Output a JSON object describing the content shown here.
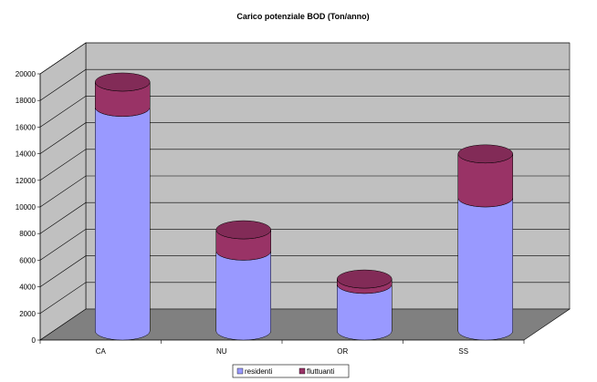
{
  "chart_data": {
    "type": "bar",
    "stacked": true,
    "three_d": true,
    "shape": "cylinder",
    "title": "Carico potenziale BOD (Ton/anno)",
    "categories": [
      "CA",
      "NU",
      "OR",
      "SS"
    ],
    "series": [
      {
        "name": "residenti",
        "values": [
          16800,
          6000,
          3500,
          10000
        ],
        "color": "#9999ff"
      },
      {
        "name": "fluttuanti",
        "values": [
          1900,
          1600,
          400,
          3300
        ],
        "color": "#993366"
      }
    ],
    "y_ticks": [
      "0",
      "2000",
      "4000",
      "6000",
      "8000",
      "10000",
      "12000",
      "14000",
      "16000",
      "18000",
      "20000"
    ],
    "ylim": [
      0,
      20000
    ],
    "grid": true,
    "wall_color": "#c0c0c0",
    "legend_placement": "bottom"
  }
}
